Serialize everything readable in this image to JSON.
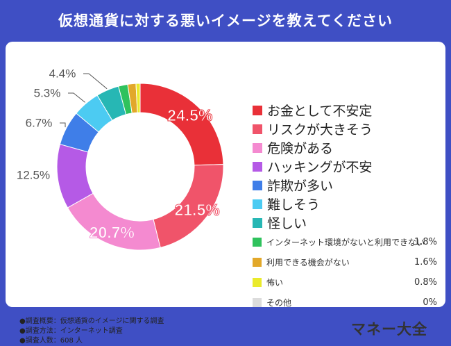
{
  "title": "仮想通貨に対する悪いイメージを教えてください",
  "chart_data": {
    "type": "pie",
    "style": "donut",
    "title": "仮想通貨に対する悪いイメージを教えてください",
    "categories": [
      "お金として不安定",
      "リスクが大きそう",
      "危険がある",
      "ハッキングが不安",
      "詐欺が多い",
      "難しそう",
      "怪しい",
      "インターネット環境がないと利用できない",
      "利用できる機会がない",
      "怖い",
      "その他"
    ],
    "values": [
      24.5,
      21.5,
      20.7,
      12.5,
      6.7,
      5.3,
      4.4,
      1.8,
      1.6,
      0.8,
      0
    ],
    "labels": [
      "24.5%",
      "21.5%",
      "20.7%",
      "12.5%",
      "6.7%",
      "5.3%",
      "4.4%",
      "1.8%",
      "1.6%",
      "0.8%",
      "0%"
    ],
    "colors": [
      "#e93038",
      "#f0546a",
      "#f48ad0",
      "#b55ae6",
      "#3f7ee8",
      "#4ccbf2",
      "#27b7b4",
      "#2fc25d",
      "#e2a82a",
      "#eaea2c",
      "#dcdcdc"
    ]
  },
  "survey": {
    "lines": [
      "●調査概要：仮想通貨のイメージに関する調査",
      "●調査方法：インターネット調査",
      "●調査人数：608 人"
    ]
  },
  "brand": "マネー大全"
}
